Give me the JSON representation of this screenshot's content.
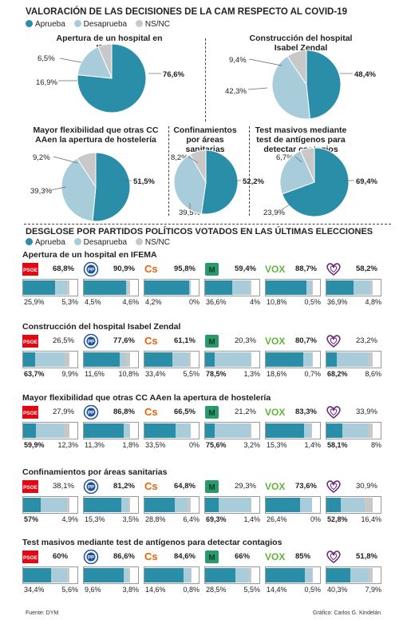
{
  "title": "VALORACIÓN DE LAS DECISIONES DE LA CAM RESPECTO AL COVID-19",
  "legend": [
    {
      "label": "Aprueba",
      "color": "#2a8ea8"
    },
    {
      "label": "Desaprueba",
      "color": "#a8ccda"
    },
    {
      "label": "NS/NC",
      "color": "#c8c8c8"
    }
  ],
  "section2_title": "DESGLOSE POR PARTIDOS POLÍTICOS VOTADOS EN LAS ÚLTIMAS ELECCIONES",
  "chart_data": [
    {
      "type": "pie",
      "title": "Apertura de un hospital en IFEMA",
      "labels": [
        "Aprueba",
        "Desaprueba",
        "NS/NC"
      ],
      "values": [
        76.6,
        16.9,
        6.5
      ],
      "value_labels": [
        "76,6%",
        "16,9%",
        "6,5%"
      ]
    },
    {
      "type": "pie",
      "title": "Construcción del hospital Isabel Zendal",
      "labels": [
        "Aprueba",
        "Desaprueba",
        "NS/NC"
      ],
      "values": [
        48.4,
        42.3,
        9.4
      ],
      "value_labels": [
        "48,4%",
        "42,3%",
        "9,4%"
      ]
    },
    {
      "type": "pie",
      "title": "Mayor flexibilidad que otras CC AAen la apertura de hostelería",
      "labels": [
        "Aprueba",
        "Desaprueba",
        "NS/NC"
      ],
      "values": [
        51.5,
        39.3,
        9.2
      ],
      "value_labels": [
        "51,5%",
        "39,3%",
        "9,2%"
      ]
    },
    {
      "type": "pie",
      "title": "Confinamientos por áreas sanitarias",
      "labels": [
        "Aprueba",
        "Desaprueba",
        "NS/NC"
      ],
      "values": [
        52.2,
        39.5,
        8.2
      ],
      "value_labels": [
        "52,2%",
        "39,5%",
        "8,2%"
      ]
    },
    {
      "type": "pie",
      "title": "Test masivos mediante test de antígenos para detectar contagios",
      "labels": [
        "Aprueba",
        "Desaprueba",
        "NS/NC"
      ],
      "values": [
        69.4,
        23.9,
        6.7
      ],
      "value_labels": [
        "69,4%",
        "23,9%",
        "6,7%"
      ]
    },
    {
      "type": "bar",
      "parties": [
        "PSOE",
        "PP",
        "Cs",
        "Más Madrid",
        "Vox",
        "Podemos"
      ],
      "party_labels": {
        "psoe": "PSOE",
        "pp": "PP",
        "cs": "Cs",
        "mm": "M",
        "vox": "VOX"
      },
      "series_names": [
        "Aprueba",
        "Desaprueba",
        "NS/NC"
      ],
      "groups": [
        {
          "title": "Apertura de un hospital en IFEMA",
          "approve": [
            68.8,
            90.9,
            95.8,
            59.4,
            88.7,
            58.2
          ],
          "disapprove": [
            25.9,
            4.5,
            4.2,
            36.6,
            10.8,
            36.9
          ],
          "nsnc": [
            5.3,
            4.6,
            0,
            4,
            0.5,
            4.8
          ],
          "approve_labels": [
            "68,8%",
            "90,9%",
            "95,8%",
            "59,4%",
            "88,7%",
            "58,2%"
          ],
          "disapprove_labels": [
            "25,9%",
            "4,5%",
            "4,2%",
            "36,6%",
            "10,8%",
            "36,9%"
          ],
          "nsnc_labels": [
            "5,3%",
            "4,6%",
            "0%",
            "4%",
            "0,5%",
            "4,8%"
          ]
        },
        {
          "title": "Construcción del hospital Isabel Zendal",
          "approve": [
            26.5,
            77.6,
            61.1,
            20.3,
            80.7,
            23.2
          ],
          "disapprove": [
            63.7,
            11.6,
            33.4,
            78.5,
            18.6,
            68.2
          ],
          "nsnc": [
            9.9,
            10.8,
            5.5,
            1.3,
            0.7,
            8.6
          ],
          "approve_labels": [
            "26,5%",
            "77,6%",
            "61,1%",
            "20,3%",
            "80,7%",
            "23,2%"
          ],
          "disapprove_labels": [
            "63,7%",
            "11,6%",
            "33,4%",
            "78,5%",
            "18,6%",
            "68,2%"
          ],
          "nsnc_labels": [
            "9,9%",
            "10,8%",
            "5,5%",
            "1,3%",
            "0,7%",
            "8,6%"
          ]
        },
        {
          "title": "Mayor flexibilidad que otras CC AAen la apertura de hostelería",
          "approve": [
            27.9,
            86.8,
            66.5,
            21.2,
            83.3,
            33.9
          ],
          "disapprove": [
            59.9,
            11.3,
            33.5,
            75.6,
            15.3,
            58.1
          ],
          "nsnc": [
            12.3,
            1.8,
            0,
            3.2,
            1.4,
            8
          ],
          "approve_labels": [
            "27,9%",
            "86,8%",
            "66,5%",
            "21,2%",
            "83,3%",
            "33,9%"
          ],
          "disapprove_labels": [
            "59,9%",
            "11,3%",
            "33,5%",
            "75,6%",
            "15,3%",
            "58,1%"
          ],
          "nsnc_labels": [
            "12,3%",
            "1,8%",
            "0%",
            "3,2%",
            "1,4%",
            "8%"
          ]
        },
        {
          "title": "Confinamientos por áreas sanitarias",
          "approve": [
            38.1,
            81.2,
            64.8,
            29.3,
            73.6,
            30.9
          ],
          "disapprove": [
            57,
            15.3,
            28.8,
            69.3,
            26.4,
            52.8
          ],
          "nsnc": [
            4.9,
            3.5,
            6.4,
            1.4,
            0,
            16.4
          ],
          "approve_labels": [
            "38,1%",
            "81,2%",
            "64,8%",
            "29,3%",
            "73,6%",
            "30,9%"
          ],
          "disapprove_labels": [
            "57%",
            "15,3%",
            "28,8%",
            "69,3%",
            "26,4%",
            "52,8%"
          ],
          "nsnc_labels": [
            "4,9%",
            "3,5%",
            "6,4%",
            "1,4%",
            "0%",
            "16,4%"
          ]
        },
        {
          "title": "Test masivos mediante test de antígenos para detectar contagios",
          "approve": [
            60,
            86.6,
            84.6,
            66,
            85,
            51.8
          ],
          "disapprove": [
            34.4,
            9.6,
            14.6,
            28.5,
            14.4,
            40.3
          ],
          "nsnc": [
            5.6,
            3.8,
            0.8,
            5.5,
            0.5,
            7.9
          ],
          "approve_labels": [
            "60%",
            "86,6%",
            "84,6%",
            "66%",
            "85%",
            "51,8%"
          ],
          "disapprove_labels": [
            "34,4%",
            "9,6%",
            "14,6%",
            "28,5%",
            "14,4%",
            "40,3%"
          ],
          "nsnc_labels": [
            "5,6%",
            "3,8%",
            "0,8%",
            "5,5%",
            "0,5%",
            "7,9%"
          ]
        }
      ]
    }
  ],
  "colors": {
    "approve": "#2a8ea8",
    "disapprove": "#a8ccda",
    "nsnc": "#c8c8c8",
    "psoe": "#e30613",
    "pp": "#1d4f9a",
    "cs": "#eb6109",
    "mm": "#2b9a6b",
    "vox": "#5fb63a",
    "podemos": "#6b2c7a"
  },
  "footer": {
    "source": "Fuente: DYM",
    "credit": "Gráfico: Carlos G. Kindelán"
  }
}
